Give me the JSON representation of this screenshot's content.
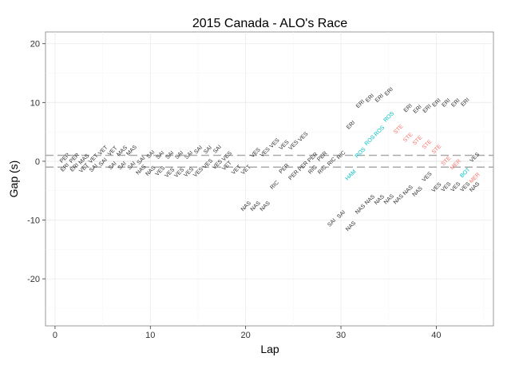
{
  "chart_data": {
    "type": "scatter",
    "title": "2015 Canada - ALO's Race",
    "xlabel": "Lap",
    "ylabel": "Gap (s)",
    "xlim": [
      -1,
      46
    ],
    "ylim": [
      -28,
      22
    ],
    "xticks": [
      0,
      10,
      20,
      30,
      40
    ],
    "yticks": [
      20,
      10,
      0,
      -10,
      -20
    ],
    "reference_lines": [
      1,
      -1
    ],
    "grid": true,
    "colors": {
      "default": "#333333",
      "teal": "#00bfc4",
      "red": "#f8766d",
      "refline": "#aaaaaa"
    },
    "points": [
      {
        "lap": 1,
        "gap": 0.6,
        "label": "PER",
        "c": "default"
      },
      {
        "lap": 1,
        "gap": 0.0,
        "label": "ERI",
        "c": "default"
      },
      {
        "lap": 2,
        "gap": 1.2,
        "label": "PER",
        "c": "default"
      },
      {
        "lap": 2,
        "gap": -0.6,
        "label": "ERI",
        "c": "default"
      },
      {
        "lap": 3,
        "gap": 0.2,
        "label": "MAS",
        "c": "default"
      },
      {
        "lap": 3,
        "gap": -0.7,
        "label": "VET",
        "c": "default"
      },
      {
        "lap": 4,
        "gap": 0.5,
        "label": "VET",
        "c": "default"
      },
      {
        "lap": 4,
        "gap": -0.7,
        "label": "SAI",
        "c": "default"
      },
      {
        "lap": 5,
        "gap": 1.5,
        "label": "VET",
        "c": "default"
      },
      {
        "lap": 5,
        "gap": -0.5,
        "label": "SAI",
        "c": "default"
      },
      {
        "lap": 6,
        "gap": 1.8,
        "label": "VET",
        "c": "default"
      },
      {
        "lap": 6,
        "gap": -0.7,
        "label": "SAI",
        "c": "default"
      },
      {
        "lap": 7,
        "gap": 2.0,
        "label": "MAS",
        "c": "default"
      },
      {
        "lap": 7,
        "gap": -0.7,
        "label": "SAI",
        "c": "default"
      },
      {
        "lap": 8,
        "gap": 2.5,
        "label": "MAS",
        "c": "default"
      },
      {
        "lap": 8,
        "gap": -0.7,
        "label": "SAI",
        "c": "default"
      },
      {
        "lap": 9,
        "gap": 0.2,
        "label": "SAI",
        "c": "default"
      },
      {
        "lap": 9,
        "gap": -1.4,
        "label": "NAS",
        "c": "default"
      },
      {
        "lap": 10,
        "gap": 0.8,
        "label": "SAI",
        "c": "default"
      },
      {
        "lap": 10,
        "gap": -1.6,
        "label": "NAS",
        "c": "default"
      },
      {
        "lap": 11,
        "gap": 1.1,
        "label": "SAI",
        "c": "default"
      },
      {
        "lap": 11,
        "gap": -1.4,
        "label": "VES",
        "c": "default"
      },
      {
        "lap": 12,
        "gap": 1.3,
        "label": "SAI",
        "c": "default"
      },
      {
        "lap": 12,
        "gap": -1.9,
        "label": "VES",
        "c": "default"
      },
      {
        "lap": 13,
        "gap": 1.3,
        "label": "SAI",
        "c": "default"
      },
      {
        "lap": 13,
        "gap": -1.9,
        "label": "VES",
        "c": "default"
      },
      {
        "lap": 14,
        "gap": 1.5,
        "label": "SAI",
        "c": "default"
      },
      {
        "lap": 14,
        "gap": -1.6,
        "label": "VES",
        "c": "default"
      },
      {
        "lap": 15,
        "gap": 2.0,
        "label": "SAI",
        "c": "default"
      },
      {
        "lap": 15,
        "gap": -1.4,
        "label": "VES",
        "c": "default"
      },
      {
        "lap": 16,
        "gap": 2.0,
        "label": "SAI",
        "c": "default"
      },
      {
        "lap": 16,
        "gap": -1.0,
        "label": "VES",
        "c": "default"
      },
      {
        "lap": 17,
        "gap": 2.5,
        "label": "SAI",
        "c": "default"
      },
      {
        "lap": 17,
        "gap": -0.5,
        "label": "VES",
        "c": "default"
      },
      {
        "lap": 18,
        "gap": 0.7,
        "label": "VES",
        "c": "default"
      },
      {
        "lap": 18,
        "gap": -0.5,
        "label": "VET",
        "c": "default"
      },
      {
        "lap": 19,
        "gap": -1.4,
        "label": "VET",
        "c": "default"
      },
      {
        "lap": 20,
        "gap": -1.0,
        "label": "VET",
        "c": "default"
      },
      {
        "lap": 20,
        "gap": -7.6,
        "label": "NAS",
        "c": "default"
      },
      {
        "lap": 21,
        "gap": 1.5,
        "label": "VES",
        "c": "default"
      },
      {
        "lap": 21,
        "gap": -7.4,
        "label": "NAS",
        "c": "default"
      },
      {
        "lap": 22,
        "gap": 2.0,
        "label": "VES",
        "c": "default"
      },
      {
        "lap": 22,
        "gap": -7.6,
        "label": "NAS",
        "c": "default"
      },
      {
        "lap": 23,
        "gap": 2.5,
        "label": "VES",
        "c": "default"
      },
      {
        "lap": 23,
        "gap": -4.0,
        "label": "RIC",
        "c": "default"
      },
      {
        "lap": 24,
        "gap": 2.8,
        "label": "VES",
        "c": "default"
      },
      {
        "lap": 24,
        "gap": -1.2,
        "label": "PER",
        "c": "default"
      },
      {
        "lap": 25,
        "gap": 3.2,
        "label": "VES",
        "c": "default"
      },
      {
        "lap": 25,
        "gap": -2.3,
        "label": "PER",
        "c": "default"
      },
      {
        "lap": 26,
        "gap": 3.8,
        "label": "VES",
        "c": "default"
      },
      {
        "lap": 26,
        "gap": -1.4,
        "label": "PER",
        "c": "default"
      },
      {
        "lap": 27,
        "gap": 0.1,
        "label": "PER",
        "c": "default"
      },
      {
        "lap": 27,
        "gap": -1.4,
        "label": "RIC",
        "c": "default"
      },
      {
        "lap": 28,
        "gap": 1.5,
        "label": "PER",
        "c": "default"
      },
      {
        "lap": 28,
        "gap": -1.0,
        "label": "RIC",
        "c": "default"
      },
      {
        "lap": 29,
        "gap": 0.0,
        "label": "RIC",
        "c": "default"
      },
      {
        "lap": 29,
        "gap": -10.4,
        "label": "SAI",
        "c": "default"
      },
      {
        "lap": 30,
        "gap": 0.7,
        "label": "RIC",
        "c": "default"
      },
      {
        "lap": 30,
        "gap": -9.0,
        "label": "SAI",
        "c": "default"
      },
      {
        "lap": 31,
        "gap": 6.2,
        "label": "ERI",
        "c": "default"
      },
      {
        "lap": 31,
        "gap": -2.3,
        "label": "HAM",
        "c": "teal"
      },
      {
        "lap": 31,
        "gap": -11.0,
        "label": "NAS",
        "c": "default"
      },
      {
        "lap": 32,
        "gap": 9.8,
        "label": "ERI",
        "c": "default"
      },
      {
        "lap": 32,
        "gap": 1.5,
        "label": "ROS",
        "c": "teal"
      },
      {
        "lap": 32,
        "gap": -8.1,
        "label": "NAS",
        "c": "default"
      },
      {
        "lap": 33,
        "gap": 10.8,
        "label": "ERI",
        "c": "default"
      },
      {
        "lap": 33,
        "gap": 3.6,
        "label": "ROS",
        "c": "teal"
      },
      {
        "lap": 33,
        "gap": -6.9,
        "label": "NAS",
        "c": "default"
      },
      {
        "lap": 34,
        "gap": 11.2,
        "label": "ERI",
        "c": "default"
      },
      {
        "lap": 34,
        "gap": 4.8,
        "label": "ROS",
        "c": "teal"
      },
      {
        "lap": 34,
        "gap": -6.5,
        "label": "NAS",
        "c": "default"
      },
      {
        "lap": 35,
        "gap": 11.9,
        "label": "ERI",
        "c": "default"
      },
      {
        "lap": 35,
        "gap": 7.6,
        "label": "ROS",
        "c": "teal"
      },
      {
        "lap": 35,
        "gap": -6.0,
        "label": "NAS",
        "c": "default"
      },
      {
        "lap": 36,
        "gap": 5.5,
        "label": "STE",
        "c": "red"
      },
      {
        "lap": 36,
        "gap": -5.8,
        "label": "NAS",
        "c": "default"
      },
      {
        "lap": 37,
        "gap": 9.1,
        "label": "ERI",
        "c": "default"
      },
      {
        "lap": 37,
        "gap": 4.1,
        "label": "STE",
        "c": "red"
      },
      {
        "lap": 37,
        "gap": -5.5,
        "label": "NAS",
        "c": "default"
      },
      {
        "lap": 38,
        "gap": 8.9,
        "label": "ERI",
        "c": "default"
      },
      {
        "lap": 38,
        "gap": 3.6,
        "label": "STE",
        "c": "red"
      },
      {
        "lap": 38,
        "gap": -5.1,
        "label": "NAS",
        "c": "default"
      },
      {
        "lap": 39,
        "gap": 9.4,
        "label": "ERI",
        "c": "default"
      },
      {
        "lap": 39,
        "gap": 2.9,
        "label": "STE",
        "c": "red"
      },
      {
        "lap": 39,
        "gap": -2.6,
        "label": "VES",
        "c": "default"
      },
      {
        "lap": 40,
        "gap": 9.8,
        "label": "ERI",
        "c": "default"
      },
      {
        "lap": 40,
        "gap": 2.1,
        "label": "STE",
        "c": "red"
      },
      {
        "lap": 40,
        "gap": -4.4,
        "label": "VES",
        "c": "default"
      },
      {
        "lap": 41,
        "gap": 10.0,
        "label": "ERI",
        "c": "default"
      },
      {
        "lap": 41,
        "gap": 0.1,
        "label": "STE",
        "c": "red"
      },
      {
        "lap": 41,
        "gap": -4.1,
        "label": "VES",
        "c": "default"
      },
      {
        "lap": 42,
        "gap": 10.0,
        "label": "ERI",
        "c": "default"
      },
      {
        "lap": 42,
        "gap": -0.5,
        "label": "MER",
        "c": "red"
      },
      {
        "lap": 42,
        "gap": -4.1,
        "label": "VES",
        "c": "default"
      },
      {
        "lap": 43,
        "gap": 10.5,
        "label": "ERI",
        "c": "default"
      },
      {
        "lap": 43,
        "gap": -1.9,
        "label": "BOT",
        "c": "teal"
      },
      {
        "lap": 43,
        "gap": -3.3,
        "label": "VES",
        "c": "default"
      },
      {
        "lap": 44,
        "gap": 0.7,
        "label": "VES",
        "c": "default"
      },
      {
        "lap": 44,
        "gap": -2.8,
        "label": "MER",
        "c": "red"
      },
      {
        "lap": 44,
        "gap": -3.3,
        "label": "NAS",
        "c": "default"
      }
    ]
  }
}
